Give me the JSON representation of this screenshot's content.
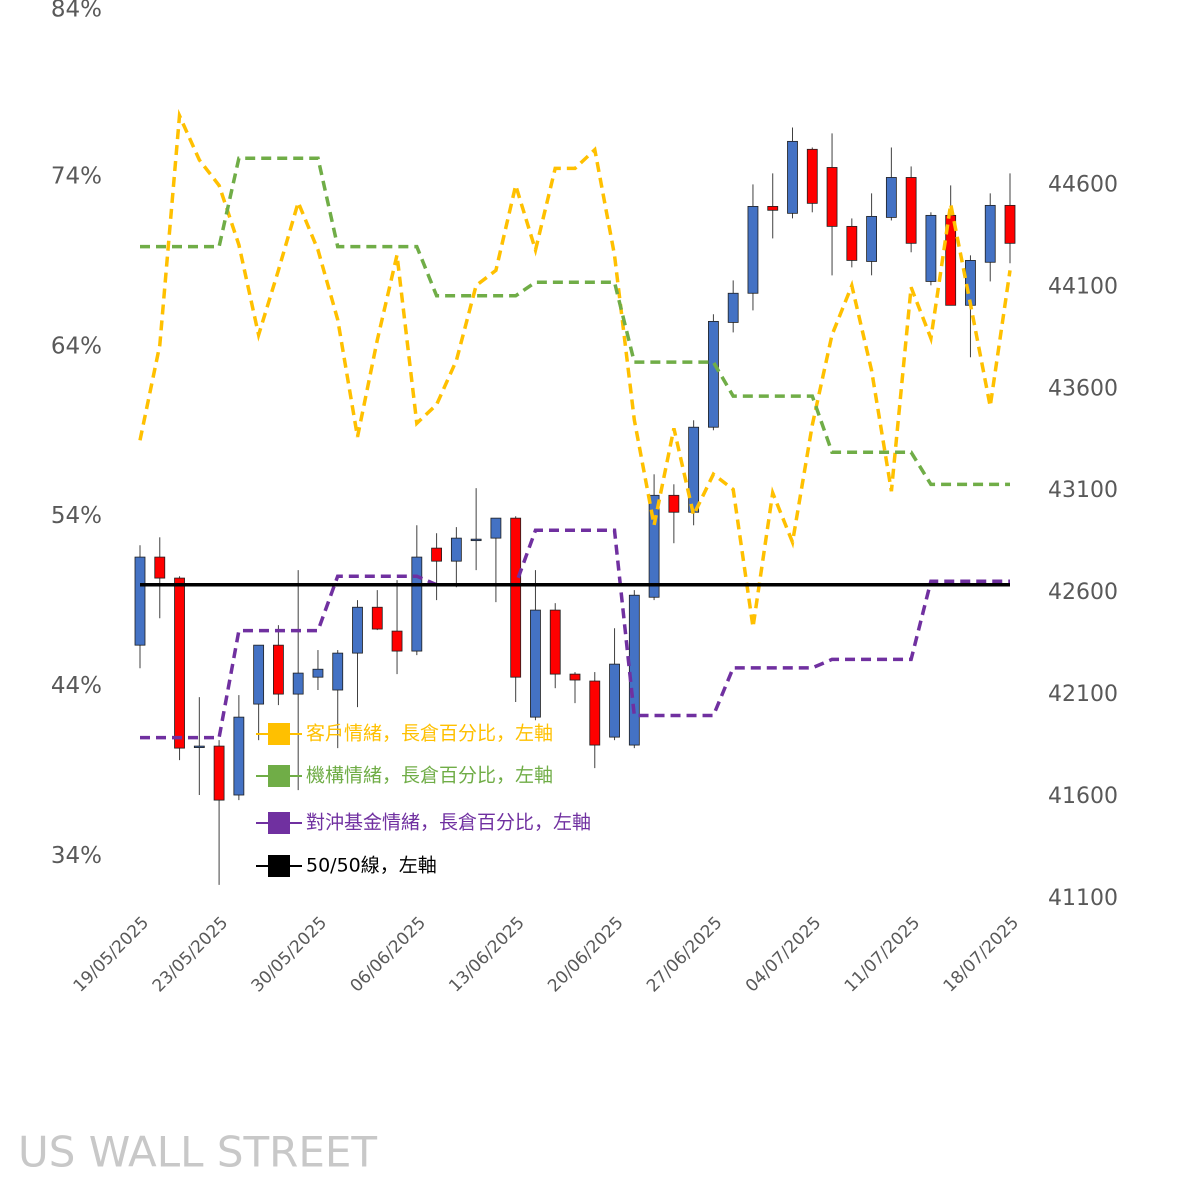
{
  "chart_data": {
    "type": "candlestick",
    "categories": [
      "19/05/2025",
      null,
      null,
      null,
      "23/05/2025",
      null,
      null,
      null,
      null,
      "30/05/2025",
      null,
      null,
      null,
      null,
      "06/06/2025",
      null,
      null,
      null,
      null,
      "13/06/2025",
      null,
      null,
      null,
      null,
      "20/06/2025",
      null,
      null,
      null,
      null,
      "27/06/2025",
      null,
      null,
      null,
      null,
      "04/07/2025",
      null,
      null,
      null,
      null,
      "11/07/2025",
      null,
      null,
      null,
      null,
      "18/07/2025"
    ],
    "candle_axis": "y2",
    "up_color": "#4472C4",
    "down_color": "#FF0000",
    "open": [
      42345,
      42777,
      42674,
      41850,
      41850,
      41610,
      42056,
      42345,
      42105,
      42188,
      42125,
      42306,
      42531,
      42414,
      42316,
      42821,
      42757,
      42865,
      42870,
      42968,
      41992,
      42517,
      42203,
      42169,
      41894,
      41855,
      42580,
      43080,
      42997,
      43414,
      43928,
      44071,
      44497,
      44463,
      44777,
      44688,
      44399,
      44227,
      44443,
      44639,
      44129,
      44453,
      44012,
      44223,
      44502
    ],
    "high": [
      42835,
      42874,
      42683,
      42090,
      41879,
      42100,
      42345,
      42443,
      42713,
      42321,
      42321,
      42566,
      42615,
      42664,
      42933,
      42894,
      42924,
      43115,
      42968,
      42977,
      42713,
      42551,
      42213,
      42213,
      42428,
      42615,
      43183,
      43134,
      43448,
      43968,
      44134,
      44605,
      44659,
      44884,
      44786,
      44855,
      44438,
      44561,
      44786,
      44693,
      44468,
      44600,
      44257,
      44561,
      44659
    ],
    "low": [
      42232,
      42477,
      41781,
      41610,
      41169,
      41585,
      41879,
      42051,
      41634,
      42125,
      41840,
      42041,
      42419,
      42203,
      42296,
      42566,
      42629,
      42713,
      42556,
      42066,
      41977,
      42134,
      42061,
      41742,
      41879,
      41840,
      42566,
      42845,
      42933,
      43399,
      43879,
      43987,
      44340,
      44438,
      44468,
      44159,
      44198,
      44159,
      44428,
      44272,
      44110,
      44012,
      43757,
      44129,
      44218
    ],
    "close": [
      42777,
      42674,
      41840,
      41850,
      41585,
      41992,
      42345,
      42105,
      42208,
      42227,
      42306,
      42531,
      42424,
      42316,
      42777,
      42757,
      42870,
      42865,
      42968,
      42188,
      42517,
      42203,
      42174,
      41855,
      42252,
      42590,
      43080,
      42997,
      43414,
      43933,
      44071,
      44497,
      44478,
      44816,
      44512,
      44399,
      44232,
      44448,
      44639,
      44316,
      44453,
      44012,
      44232,
      44502,
      44316
    ],
    "series": [
      {
        "name": "客戶情緒，長倉百分比，左軸",
        "color": "#FFC000",
        "dashed": true,
        "values": [
          58.5,
          64.1,
          77.6,
          75.0,
          73.5,
          70.0,
          64.7,
          68.5,
          72.5,
          69.7,
          65.6,
          58.7,
          64.4,
          69.4,
          59.5,
          60.6,
          63.2,
          67.6,
          68.5,
          73.5,
          69.7,
          74.5,
          74.5,
          75.6,
          69.4,
          59.7,
          53.5,
          59.2,
          54.1,
          56.5,
          55.6,
          47.5,
          55.4,
          52.5,
          59.4,
          64.7,
          67.6,
          62.6,
          55.5,
          67.5,
          64.5,
          72.4,
          66.5,
          60.5,
          68.5
        ]
      },
      {
        "name": "機構情緒，長倉百分比，左軸",
        "color": "#70AD47",
        "dashed": true,
        "values": [
          69.9,
          69.9,
          69.9,
          69.9,
          69.9,
          75.1,
          75.1,
          75.1,
          75.1,
          75.1,
          69.9,
          69.9,
          69.9,
          69.9,
          69.9,
          67.0,
          67.0,
          67.0,
          67.0,
          67.0,
          67.8,
          67.8,
          67.8,
          67.8,
          67.8,
          63.1,
          63.1,
          63.1,
          63.1,
          63.1,
          61.1,
          61.1,
          61.1,
          61.1,
          61.1,
          57.8,
          57.8,
          57.8,
          57.8,
          57.8,
          55.9,
          55.9,
          55.9,
          55.9,
          55.9
        ]
      },
      {
        "name": "對沖基金情緒，長倉百分比，左軸",
        "color": "#7030A0",
        "dashed": true,
        "values": [
          41.0,
          41.0,
          41.0,
          41.0,
          41.0,
          47.3,
          47.3,
          47.3,
          47.3,
          47.3,
          50.5,
          50.5,
          50.5,
          50.5,
          50.5,
          50.0,
          50.0,
          50.0,
          50.0,
          50.0,
          53.2,
          53.2,
          53.2,
          53.2,
          53.2,
          42.3,
          42.3,
          42.3,
          42.3,
          42.3,
          45.1,
          45.1,
          45.1,
          45.1,
          45.1,
          45.6,
          45.6,
          45.6,
          45.6,
          45.6,
          50.2,
          50.2,
          50.2,
          50.2,
          50.2
        ]
      },
      {
        "name": "50/50線，左軸",
        "color": "#000000",
        "dashed": false,
        "values": [
          50,
          50,
          50,
          50,
          50,
          50,
          50,
          50,
          50,
          50,
          50,
          50,
          50,
          50,
          50,
          50,
          50,
          50,
          50,
          50,
          50,
          50,
          50,
          50,
          50,
          50,
          50,
          50,
          50,
          50,
          50,
          50,
          50,
          50,
          50,
          50,
          50,
          50,
          50,
          50,
          50,
          50,
          50,
          50,
          50
        ]
      }
    ],
    "ylim": [
      31.5,
      84
    ],
    "yticks": [
      {
        "value": 34,
        "label": "34%"
      },
      {
        "value": 44,
        "label": "44%"
      },
      {
        "value": 54,
        "label": "54%"
      },
      {
        "value": 64,
        "label": "64%"
      },
      {
        "value": 74,
        "label": "74%"
      },
      {
        "value": 84,
        "label": "84%"
      }
    ],
    "y2lim": [
      41100,
      45475
    ],
    "y2ticks": [
      41100,
      41600,
      42100,
      42600,
      43100,
      43600,
      44100,
      44600
    ],
    "watermark": "US WALL STREET"
  }
}
